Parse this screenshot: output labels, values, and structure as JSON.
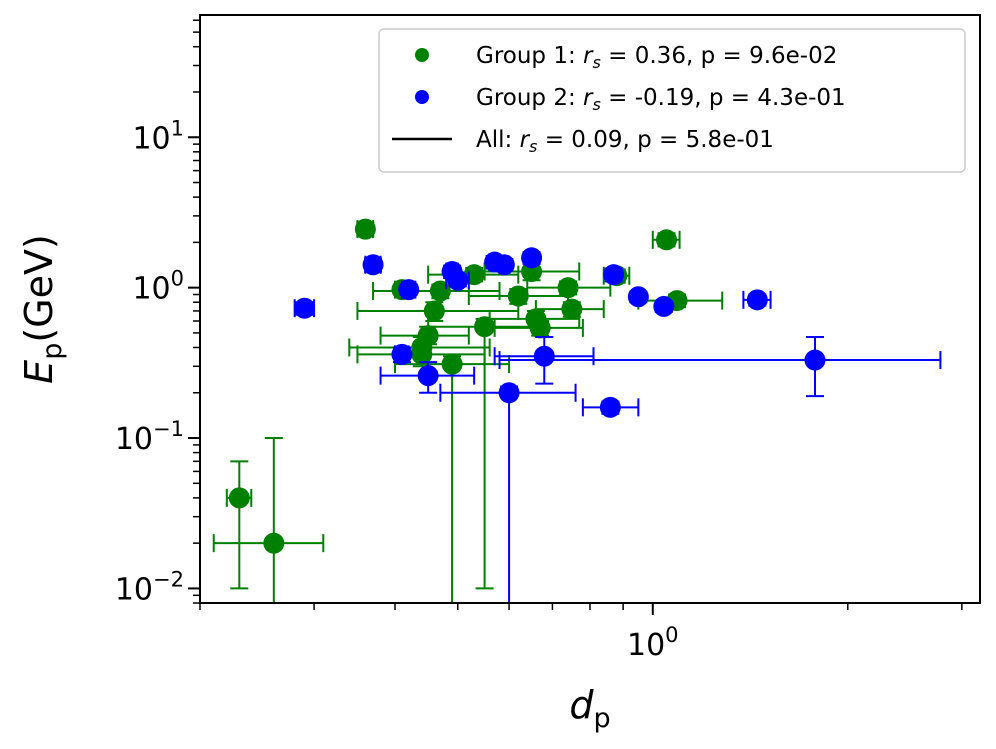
{
  "chart_data": {
    "type": "scatter",
    "xscale": "log",
    "yscale": "log",
    "xlim": [
      0.2,
      3.2
    ],
    "ylim": [
      0.008,
      65
    ],
    "xlabel": {
      "main": "d",
      "sub": "p"
    },
    "ylabel": {
      "main": "E",
      "sub": "p",
      "unit": "(GeV)"
    },
    "xticks": [
      {
        "value": 1.0,
        "base": "10",
        "exp": "0"
      }
    ],
    "yticks": [
      {
        "value": 0.01,
        "base": "10",
        "exp": "−2"
      },
      {
        "value": 0.1,
        "base": "10",
        "exp": "−1"
      },
      {
        "value": 1.0,
        "base": "10",
        "exp": "0"
      },
      {
        "value": 10.0,
        "base": "10",
        "exp": "1"
      }
    ],
    "legend": {
      "position": "top-right",
      "entries": [
        {
          "marker": "dot",
          "color": "#008000",
          "prefix": "Group 1: ",
          "sym": "r",
          "sub": "s",
          "suffix": " = 0.36, p = 9.6e-02"
        },
        {
          "marker": "dot",
          "color": "#0000ff",
          "prefix": "Group 2: ",
          "sym": "r",
          "sub": "s",
          "suffix": " = -0.19, p = 4.3e-01"
        },
        {
          "marker": "line",
          "color": "#000000",
          "prefix": "All: ",
          "sym": "r",
          "sub": "s",
          "suffix": " = 0.09, p = 5.8e-01"
        }
      ]
    },
    "series": [
      {
        "name": "Group 1",
        "color": "#008000",
        "points": [
          {
            "x": 0.23,
            "y": 0.04,
            "xlo": 0.22,
            "xhi": 0.24,
            "ylo": 0.01,
            "yhi": 0.07
          },
          {
            "x": 0.26,
            "y": 0.02,
            "xlo": 0.21,
            "xhi": 0.31,
            "ylo": 0.005,
            "yhi": 0.1
          },
          {
            "x": 0.36,
            "y": 2.45,
            "xlo": 0.35,
            "xhi": 0.37,
            "ylo": 2.2,
            "yhi": 2.7
          },
          {
            "x": 0.41,
            "y": 0.97,
            "xlo": 0.4,
            "xhi": 0.42,
            "ylo": 0.9,
            "yhi": 1.05
          },
          {
            "x": 0.44,
            "y": 0.4,
            "xlo": 0.34,
            "xhi": 0.56,
            "ylo": 0.34,
            "yhi": 0.47
          },
          {
            "x": 0.44,
            "y": 0.36,
            "xlo": 0.35,
            "xhi": 0.55,
            "ylo": 0.3,
            "yhi": 0.42
          },
          {
            "x": 0.45,
            "y": 0.48,
            "xlo": 0.38,
            "xhi": 0.52,
            "ylo": 0.42,
            "yhi": 0.55
          },
          {
            "x": 0.46,
            "y": 0.7,
            "xlo": 0.35,
            "xhi": 0.62,
            "ylo": 0.6,
            "yhi": 0.8
          },
          {
            "x": 0.47,
            "y": 0.95,
            "xlo": 0.37,
            "xhi": 0.58,
            "ylo": 0.85,
            "yhi": 1.05
          },
          {
            "x": 0.49,
            "y": 0.31,
            "xlo": 0.4,
            "xhi": 0.6,
            "ylo": 0.005,
            "yhi": 0.35
          },
          {
            "x": 0.53,
            "y": 1.22,
            "xlo": 0.45,
            "xhi": 0.62,
            "ylo": 1.1,
            "yhi": 1.35
          },
          {
            "x": 0.55,
            "y": 0.55,
            "xlo": 0.45,
            "xhi": 0.67,
            "ylo": 0.01,
            "yhi": 0.62
          },
          {
            "x": 0.62,
            "y": 0.88,
            "xlo": 0.52,
            "xhi": 0.74,
            "ylo": 0.78,
            "yhi": 0.98
          },
          {
            "x": 0.65,
            "y": 1.28,
            "xlo": 0.55,
            "xhi": 0.77,
            "ylo": 1.12,
            "yhi": 1.45
          },
          {
            "x": 0.66,
            "y": 0.62,
            "xlo": 0.56,
            "xhi": 0.77,
            "ylo": 0.55,
            "yhi": 0.7
          },
          {
            "x": 0.67,
            "y": 0.54,
            "xlo": 0.57,
            "xhi": 0.78,
            "ylo": 0.48,
            "yhi": 0.6
          },
          {
            "x": 0.74,
            "y": 1.0,
            "xlo": 0.64,
            "xhi": 0.86,
            "ylo": 0.9,
            "yhi": 1.1
          },
          {
            "x": 0.75,
            "y": 0.72,
            "xlo": 0.66,
            "xhi": 0.84,
            "ylo": 0.64,
            "yhi": 0.8
          },
          {
            "x": 0.88,
            "y": 1.2,
            "xlo": 0.84,
            "xhi": 0.92,
            "ylo": 1.08,
            "yhi": 1.32
          },
          {
            "x": 1.05,
            "y": 2.08,
            "xlo": 1.0,
            "xhi": 1.1,
            "ylo": 1.88,
            "yhi": 2.3
          },
          {
            "x": 1.09,
            "y": 0.82,
            "xlo": 0.95,
            "xhi": 1.28,
            "ylo": 0.74,
            "yhi": 0.9
          }
        ]
      },
      {
        "name": "Group 2",
        "color": "#0000ff",
        "points": [
          {
            "x": 0.29,
            "y": 0.73,
            "xlo": 0.28,
            "xhi": 0.3,
            "ylo": 0.66,
            "yhi": 0.8
          },
          {
            "x": 0.37,
            "y": 1.42,
            "xlo": 0.36,
            "xhi": 0.38,
            "ylo": 1.28,
            "yhi": 1.56
          },
          {
            "x": 0.42,
            "y": 0.97,
            "xlo": 0.41,
            "xhi": 0.43,
            "ylo": 0.9,
            "yhi": 1.05
          },
          {
            "x": 0.41,
            "y": 0.36,
            "xlo": 0.4,
            "xhi": 0.42,
            "ylo": 0.32,
            "yhi": 0.4
          },
          {
            "x": 0.45,
            "y": 0.26,
            "xlo": 0.38,
            "xhi": 0.53,
            "ylo": 0.2,
            "yhi": 0.32
          },
          {
            "x": 0.49,
            "y": 1.28,
            "xlo": 0.48,
            "xhi": 0.5,
            "ylo": 1.16,
            "yhi": 1.4
          },
          {
            "x": 0.5,
            "y": 1.12,
            "xlo": 0.48,
            "xhi": 0.52,
            "ylo": 1.02,
            "yhi": 1.22
          },
          {
            "x": 0.57,
            "y": 1.48,
            "xlo": 0.56,
            "xhi": 0.58,
            "ylo": 1.34,
            "yhi": 1.62
          },
          {
            "x": 0.59,
            "y": 1.42,
            "xlo": 0.58,
            "xhi": 0.6,
            "ylo": 1.3,
            "yhi": 1.55
          },
          {
            "x": 0.65,
            "y": 1.58,
            "xlo": 0.64,
            "xhi": 0.66,
            "ylo": 1.44,
            "yhi": 1.72
          },
          {
            "x": 0.6,
            "y": 0.2,
            "xlo": 0.47,
            "xhi": 0.76,
            "ylo": 0.005,
            "yhi": 0.22
          },
          {
            "x": 0.68,
            "y": 0.35,
            "xlo": 0.57,
            "xhi": 0.81,
            "ylo": 0.23,
            "yhi": 0.47
          },
          {
            "x": 0.87,
            "y": 1.22,
            "xlo": 0.86,
            "xhi": 0.88,
            "ylo": 1.1,
            "yhi": 1.34
          },
          {
            "x": 0.86,
            "y": 0.16,
            "xlo": 0.78,
            "xhi": 0.95,
            "ylo": 0.145,
            "yhi": 0.175
          },
          {
            "x": 0.95,
            "y": 0.87,
            "xlo": 0.94,
            "xhi": 0.96,
            "ylo": 0.8,
            "yhi": 0.94
          },
          {
            "x": 1.04,
            "y": 0.75,
            "xlo": 1.03,
            "xhi": 1.05,
            "ylo": 0.69,
            "yhi": 0.81
          },
          {
            "x": 1.45,
            "y": 0.83,
            "xlo": 1.38,
            "xhi": 1.52,
            "ylo": 0.76,
            "yhi": 0.9
          },
          {
            "x": 1.78,
            "y": 0.33,
            "xlo": 0.58,
            "xhi": 2.78,
            "ylo": 0.19,
            "yhi": 0.47
          }
        ]
      }
    ]
  }
}
